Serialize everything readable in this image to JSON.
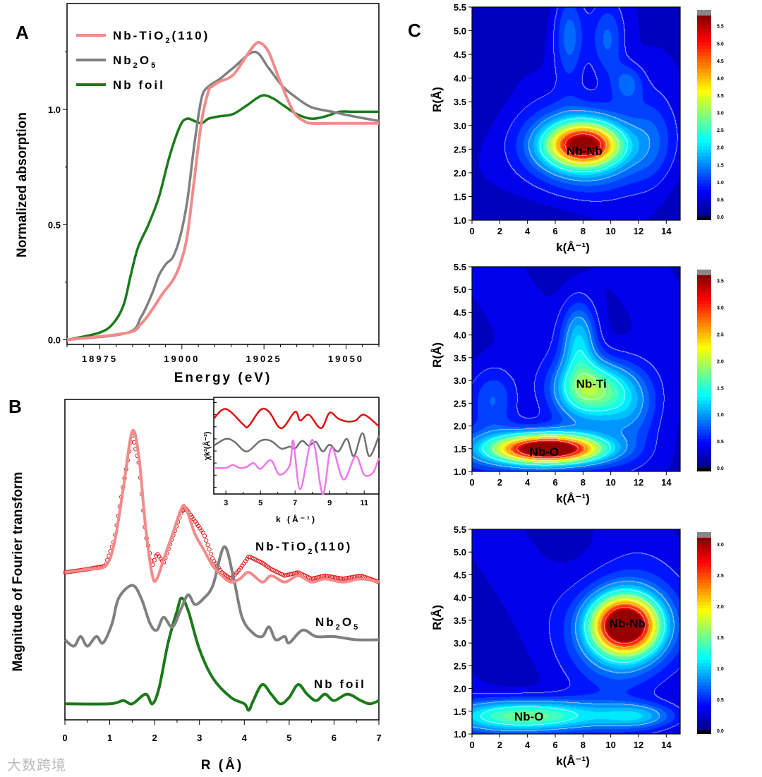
{
  "panels": {
    "a": "A",
    "b": "B",
    "c": "C"
  },
  "watermark": "大数跨境",
  "chart_data": [
    {
      "id": "A",
      "type": "line",
      "xlabel": "Energy (eV)",
      "ylabel": "Normalized absorption",
      "xlim": [
        18965,
        19060
      ],
      "ylim": [
        -0.02,
        1.46
      ],
      "xticks": [
        18975,
        19000,
        19025,
        19050
      ],
      "xtick_labels": [
        "18975",
        "19000",
        "19025",
        "19050"
      ],
      "yticks": [
        0.0,
        0.5,
        1.0
      ],
      "ytick_labels": [
        "0.0",
        "0.5",
        "1.0"
      ],
      "legend_position": "top-left",
      "series": [
        {
          "name": "Nb-TiO2(110)",
          "label_parts": [
            "Nb-TiO",
            "2",
            "(110)"
          ],
          "color": "#f28b8b",
          "x": [
            18965,
            18983.3,
            18987.6,
            18990.9,
            18994.1,
            18997.3,
            18999.5,
            19001.6,
            19003.8,
            19006,
            19008.1,
            19009.2,
            19011.3,
            19015.6,
            19020,
            19022.1,
            19023.8,
            19026.4,
            19029.7,
            19034,
            19037.2,
            19039.4,
            19045.8,
            19052.3,
            19060
          ],
          "y": [
            0.0,
            0.03,
            0.07,
            0.13,
            0.2,
            0.26,
            0.33,
            0.45,
            0.7,
            0.95,
            1.08,
            1.1,
            1.12,
            1.15,
            1.24,
            1.28,
            1.29,
            1.25,
            1.13,
            0.99,
            0.95,
            0.94,
            0.94,
            0.94,
            0.94
          ]
        },
        {
          "name": "Nb2O5",
          "label_parts": [
            "Nb",
            "2",
            "O",
            "5"
          ],
          "color": "#808080",
          "x": [
            18965,
            18983.3,
            18987.6,
            18990.9,
            18993,
            18995.2,
            18997.3,
            18999.5,
            19001.6,
            19003.8,
            19006,
            19008.1,
            19011.3,
            19015.6,
            19022.1,
            19026.4,
            19030.7,
            19035,
            19039.4,
            19045.8,
            19052.3,
            19060
          ],
          "y": [
            0.0,
            0.03,
            0.1,
            0.2,
            0.28,
            0.33,
            0.36,
            0.45,
            0.6,
            0.85,
            1.05,
            1.1,
            1.13,
            1.18,
            1.25,
            1.18,
            1.1,
            1.05,
            1.01,
            0.99,
            0.97,
            0.95
          ]
        },
        {
          "name": "Nb foil",
          "label_parts": [
            "Nb foil"
          ],
          "color": "#1a7a1a",
          "x": [
            18965,
            18974.7,
            18979,
            18982.2,
            18984.4,
            18986.6,
            18989.8,
            18993,
            18996.3,
            18999.5,
            19001.6,
            19003.8,
            19006,
            19008.1,
            19011.3,
            19015.6,
            19020,
            19024.3,
            19027.5,
            19030.7,
            19035,
            19039.4,
            19043.7,
            19048,
            19052.3,
            19060
          ],
          "y": [
            0.0,
            0.03,
            0.07,
            0.15,
            0.28,
            0.4,
            0.5,
            0.62,
            0.8,
            0.93,
            0.96,
            0.95,
            0.94,
            0.96,
            0.97,
            0.98,
            1.02,
            1.06,
            1.05,
            1.02,
            0.98,
            0.96,
            0.97,
            0.99,
            0.99,
            0.99
          ]
        }
      ]
    },
    {
      "id": "B",
      "type": "line",
      "xlabel": "R (Å)",
      "ylabel": "Magnitude of Fourier transform",
      "xlim": [
        0,
        7
      ],
      "ylim": [
        0,
        1
      ],
      "xticks": [
        0,
        1,
        2,
        3,
        4,
        5,
        6,
        7
      ],
      "xtick_labels": [
        "0",
        "1",
        "2",
        "3",
        "4",
        "5",
        "6",
        "7"
      ],
      "series": [
        {
          "name": "Nb-TiO2(110)",
          "label_parts": [
            "Nb-TiO",
            "2",
            "(110)"
          ],
          "color": "#f28b8b",
          "style": "line",
          "x": [
            0,
            0.5,
            0.9,
            1.1,
            1.3,
            1.5,
            1.65,
            1.8,
            1.95,
            2.05,
            2.2,
            2.4,
            2.6,
            2.7,
            2.9,
            3.1,
            3.3,
            3.5,
            3.7,
            3.9,
            4.1,
            4.4,
            4.6,
            4.9,
            5.2,
            5.5,
            5.8,
            6.2,
            6.6,
            7
          ],
          "y": [
            0.46,
            0.47,
            0.48,
            0.55,
            0.72,
            0.9,
            0.82,
            0.6,
            0.45,
            0.44,
            0.5,
            0.58,
            0.66,
            0.66,
            0.58,
            0.53,
            0.48,
            0.45,
            0.43,
            0.44,
            0.46,
            0.43,
            0.45,
            0.43,
            0.45,
            0.43,
            0.44,
            0.43,
            0.44,
            0.43
          ]
        },
        {
          "name": "Nb-TiO2(110) data",
          "color": "#e02020",
          "style": "circles",
          "x": [
            0,
            0.5,
            0.9,
            1.1,
            1.3,
            1.5,
            1.65,
            1.8,
            1.95,
            2.05,
            2.2,
            2.4,
            2.6,
            2.7,
            2.9,
            3.1,
            3.3,
            3.5,
            3.7,
            3.9,
            4.1,
            4.4,
            4.6,
            4.9,
            5.2,
            5.5,
            5.8,
            6.2,
            6.6,
            7
          ],
          "y": [
            0.46,
            0.47,
            0.48,
            0.56,
            0.73,
            0.89,
            0.8,
            0.58,
            0.48,
            0.52,
            0.49,
            0.57,
            0.65,
            0.66,
            0.62,
            0.58,
            0.5,
            0.46,
            0.44,
            0.47,
            0.51,
            0.49,
            0.47,
            0.45,
            0.46,
            0.44,
            0.45,
            0.44,
            0.45,
            0.43
          ]
        },
        {
          "name": "Nb2O5",
          "label_parts": [
            "Nb",
            "2",
            "O",
            "5"
          ],
          "color": "#808080",
          "style": "line",
          "x": [
            0,
            0.2,
            0.35,
            0.5,
            0.7,
            0.85,
            1.05,
            1.2,
            1.5,
            1.7,
            1.9,
            2.05,
            2.2,
            2.4,
            2.6,
            2.75,
            2.9,
            3.1,
            3.3,
            3.55,
            3.75,
            3.95,
            4.2,
            4.4,
            4.55,
            4.7,
            4.9,
            5.0,
            5.3,
            5.6,
            6.0,
            6.5,
            7
          ],
          "y": [
            0.25,
            0.23,
            0.26,
            0.23,
            0.26,
            0.24,
            0.3,
            0.38,
            0.42,
            0.38,
            0.3,
            0.28,
            0.32,
            0.29,
            0.35,
            0.39,
            0.36,
            0.38,
            0.42,
            0.54,
            0.45,
            0.32,
            0.27,
            0.26,
            0.29,
            0.25,
            0.26,
            0.24,
            0.28,
            0.26,
            0.26,
            0.25,
            0.25
          ]
        },
        {
          "name": "Nb foil",
          "label_parts": [
            "Nb foil"
          ],
          "color": "#1a7a1a",
          "style": "line",
          "x": [
            0,
            1,
            1.3,
            1.5,
            1.8,
            1.95,
            2.1,
            2.3,
            2.5,
            2.6,
            2.75,
            3.0,
            3.3,
            3.7,
            4.0,
            4.1,
            4.2,
            4.4,
            4.6,
            4.8,
            5.0,
            5.2,
            5.4,
            5.6,
            5.8,
            6.0,
            6.3,
            6.6,
            6.8,
            7
          ],
          "y": [
            0.05,
            0.05,
            0.06,
            0.05,
            0.08,
            0.05,
            0.1,
            0.24,
            0.34,
            0.38,
            0.34,
            0.22,
            0.13,
            0.07,
            0.05,
            0.03,
            0.06,
            0.11,
            0.08,
            0.05,
            0.07,
            0.11,
            0.08,
            0.06,
            0.08,
            0.06,
            0.08,
            0.06,
            0.05,
            0.06
          ]
        }
      ],
      "inset": {
        "type": "line",
        "xlabel": "k (Å⁻¹)",
        "ylabel": "χk³(Å⁻³)",
        "xlim": [
          2.3,
          11.85
        ],
        "ylim": [
          0,
          1
        ],
        "xticks": [
          3,
          5,
          7,
          9,
          11
        ],
        "xtick_labels": [
          "3",
          "5",
          "7",
          "9",
          "11"
        ],
        "series": [
          {
            "name": "Nb-TiO2(110)",
            "color": "#e01010",
            "x": [
              2.3,
              3,
              4,
              4.3,
              5,
              5.5,
              6.2,
              7,
              7.3,
              7.8,
              8.5,
              9,
              9.5,
              10,
              10.5,
              11,
              11.85
            ],
            "y": [
              0.78,
              0.88,
              0.72,
              0.7,
              0.87,
              0.85,
              0.68,
              0.85,
              0.76,
              0.82,
              0.68,
              0.84,
              0.78,
              0.75,
              0.76,
              0.82,
              0.7
            ]
          },
          {
            "name": "Nb2O5",
            "color": "#707070",
            "x": [
              2.3,
              3,
              3.5,
              4.2,
              5,
              5.6,
              6.2,
              6.7,
              7,
              7.4,
              7.8,
              8.2,
              8.6,
              9,
              9.5,
              10,
              10.4,
              10.9,
              11.3,
              11.85
            ],
            "y": [
              0.5,
              0.57,
              0.54,
              0.44,
              0.55,
              0.55,
              0.47,
              0.49,
              0.47,
              0.55,
              0.5,
              0.54,
              0.44,
              0.51,
              0.44,
              0.57,
              0.39,
              0.63,
              0.39,
              0.6
            ]
          },
          {
            "name": "Nb foil",
            "color": "#ee77ee",
            "x": [
              2.3,
              3,
              3.4,
              3.8,
              4.2,
              4.6,
              5,
              5.6,
              6.1,
              6.7,
              6.9,
              7.3,
              8.0,
              8.6,
              9.1,
              9.8,
              10.5,
              11,
              11.5,
              11.85
            ],
            "y": [
              0.27,
              0.27,
              0.3,
              0.27,
              0.28,
              0.32,
              0.26,
              0.35,
              0.2,
              0.3,
              0.55,
              0.05,
              0.56,
              0.0,
              0.48,
              0.15,
              0.39,
              0.2,
              0.22,
              0.37
            ]
          }
        ]
      }
    },
    {
      "id": "C1",
      "type": "heatmap",
      "xlabel": "k(Å⁻¹)",
      "ylabel": "R(Å)",
      "xlim": [
        0,
        15
      ],
      "ylim": [
        1.0,
        5.5
      ],
      "xticks": [
        0,
        2,
        4,
        6,
        8,
        10,
        12,
        14
      ],
      "yticks": [
        1.0,
        1.5,
        2.0,
        2.5,
        3.0,
        3.5,
        4.0,
        4.5,
        5.0,
        5.5
      ],
      "colorbar": {
        "min": 0.0,
        "max": 5.8,
        "ticks": [
          "0.0",
          "0.5",
          "1.0",
          "1.5",
          "2.0",
          "2.5",
          "3.0",
          "3.5",
          "4.0",
          "4.5",
          "5.0",
          "5.5"
        ]
      },
      "background": 0.45,
      "peaks": [
        {
          "k": 8,
          "R": 2.6,
          "amp": 4.0,
          "sk": 1.6,
          "sR": 0.28
        },
        {
          "k": 8,
          "R": 2.55,
          "amp": 1.9,
          "sk": 3.2,
          "sR": 0.6
        },
        {
          "k": 7,
          "R": 4.9,
          "amp": 1.0,
          "sk": 0.8,
          "sR": 0.7
        },
        {
          "k": 9.7,
          "R": 4.8,
          "amp": 0.9,
          "sk": 0.9,
          "sR": 0.6
        },
        {
          "k": 11.2,
          "R": 3.9,
          "amp": 0.8,
          "sk": 0.8,
          "sR": 0.3
        },
        {
          "k": 13,
          "R": 2.8,
          "amp": 0.5,
          "sk": 1.2,
          "sR": 0.8
        }
      ],
      "annotations": [
        {
          "text": "Nb-Nb",
          "k": 8.1,
          "R": 2.48
        }
      ]
    },
    {
      "id": "C2",
      "type": "heatmap",
      "xlabel": "k(Å⁻¹)",
      "ylabel": "R(Å)",
      "xlim": [
        0,
        15
      ],
      "ylim": [
        1.0,
        5.5
      ],
      "xticks": [
        0,
        2,
        4,
        6,
        8,
        10,
        12,
        14
      ],
      "yticks": [
        1.0,
        1.5,
        2.0,
        2.5,
        3.0,
        3.5,
        4.0,
        4.5,
        5.0,
        5.5
      ],
      "colorbar": {
        "min": 0.0,
        "max": 3.6,
        "ticks": [
          "0.0",
          "0.5",
          "1.0",
          "1.5",
          "2.0",
          "2.5",
          "3.0",
          "3.5"
        ]
      },
      "background": 0.35,
      "peaks": [
        {
          "k": 5.5,
          "R": 1.5,
          "amp": 3.3,
          "sk": 2.4,
          "sR": 0.2
        },
        {
          "k": 4.5,
          "R": 1.5,
          "amp": 0.8,
          "sk": 4,
          "sR": 0.35
        },
        {
          "k": 8.5,
          "R": 2.8,
          "amp": 1.5,
          "sk": 1.8,
          "sR": 0.45
        },
        {
          "k": 7.7,
          "R": 3.9,
          "amp": 0.9,
          "sk": 0.9,
          "sR": 0.6
        },
        {
          "k": 11.5,
          "R": 2.5,
          "amp": 0.6,
          "sk": 1.5,
          "sR": 0.6
        },
        {
          "k": 1.5,
          "R": 2.6,
          "amp": 0.5,
          "sk": 1.2,
          "sR": 0.5
        }
      ],
      "annotations": [
        {
          "text": "Nb-Ti",
          "k": 8.6,
          "R": 2.95
        },
        {
          "text": "Nb-O",
          "k": 5.2,
          "R": 1.45
        }
      ]
    },
    {
      "id": "C3",
      "type": "heatmap",
      "xlabel": "k(Å⁻¹)",
      "ylabel": "R(Å)",
      "xlim": [
        0,
        15
      ],
      "ylim": [
        1.0,
        5.5
      ],
      "xticks": [
        0,
        2,
        4,
        6,
        8,
        10,
        12,
        14
      ],
      "yticks": [
        1.0,
        1.5,
        2.0,
        2.5,
        3.0,
        3.5,
        4.0,
        4.5,
        5.0,
        5.5
      ],
      "colorbar": {
        "min": 0.0,
        "max": 3.1,
        "ticks": [
          "0.0",
          "0.5",
          "1.0",
          "1.5",
          "2.0",
          "2.5",
          "3.0"
        ]
      },
      "background": 0.3,
      "peaks": [
        {
          "k": 11,
          "R": 3.4,
          "amp": 2.8,
          "sk": 1.5,
          "sR": 0.4
        },
        {
          "k": 11,
          "R": 3.3,
          "amp": 0.9,
          "sk": 2.5,
          "sR": 0.8
        },
        {
          "k": 4,
          "R": 1.4,
          "amp": 1.3,
          "sk": 3.8,
          "sR": 0.25
        },
        {
          "k": 12,
          "R": 1.4,
          "amp": 0.6,
          "sk": 2,
          "sR": 0.2
        }
      ],
      "annotations": [
        {
          "text": "Nb-Nb",
          "k": 11.2,
          "R": 3.45
        },
        {
          "text": "Nb-O",
          "k": 4.1,
          "R": 1.4
        }
      ]
    }
  ]
}
